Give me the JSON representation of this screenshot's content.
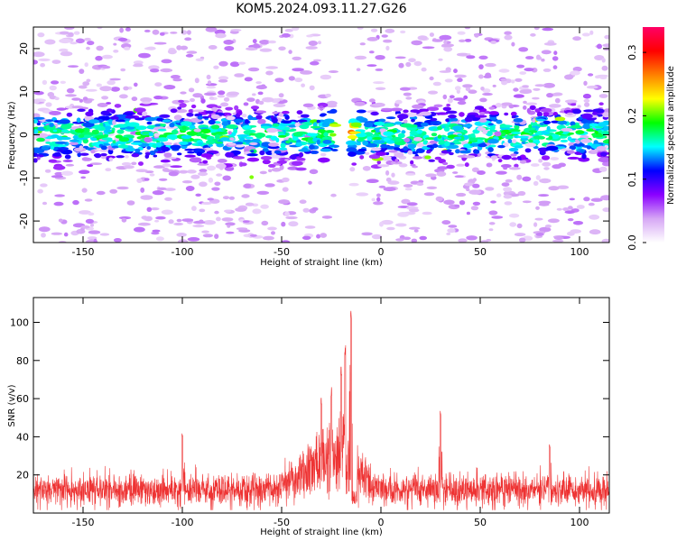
{
  "title": "KOM5.2024.093.11.27.G26",
  "chart_data": [
    {
      "type": "heatmap",
      "xlabel": "Height of straight line (km)",
      "ylabel": "Frequency (Hz)",
      "xlim": [
        -175,
        115
      ],
      "ylim": [
        -25,
        25
      ],
      "x_ticks": [
        -150,
        -100,
        -50,
        0,
        50,
        100
      ],
      "y_ticks": [
        -20,
        -10,
        0,
        10,
        20
      ],
      "colorbar": {
        "label": "Normalized spectral amplitude",
        "range": [
          0,
          0.34
        ],
        "ticks": [
          0.0,
          0.1,
          0.2,
          0.3
        ],
        "colors": [
          "#ffffff",
          "#d6a7f5",
          "#8a00ff",
          "#0000ff",
          "#00ffff",
          "#00ff00",
          "#ffff00",
          "#ff8000",
          "#ff0000",
          "#ff0066"
        ]
      },
      "band_center_hz": 0,
      "band_halfwidth_hz": 5,
      "gap_km": [
        -23,
        -15
      ],
      "peak": {
        "x": -18,
        "y": 1,
        "value": 0.34
      }
    },
    {
      "type": "line",
      "xlabel": "Height of straight line (km)",
      "ylabel": "SNR (v/v)",
      "xlim": [
        -175,
        115
      ],
      "ylim": [
        0,
        113
      ],
      "x_ticks": [
        -150,
        -100,
        -50,
        0,
        50,
        100
      ],
      "y_ticks": [
        20,
        40,
        60,
        80,
        100
      ],
      "color": "#ee3333",
      "baseline_mean": 12,
      "peaks": [
        {
          "x": -15,
          "y": 112
        },
        {
          "x": -18,
          "y": 92
        },
        {
          "x": -20,
          "y": 78
        },
        {
          "x": -25,
          "y": 68
        },
        {
          "x": -30,
          "y": 62
        },
        {
          "x": 30,
          "y": 54
        },
        {
          "x": 85,
          "y": 36
        },
        {
          "x": -100,
          "y": 42
        }
      ]
    }
  ]
}
